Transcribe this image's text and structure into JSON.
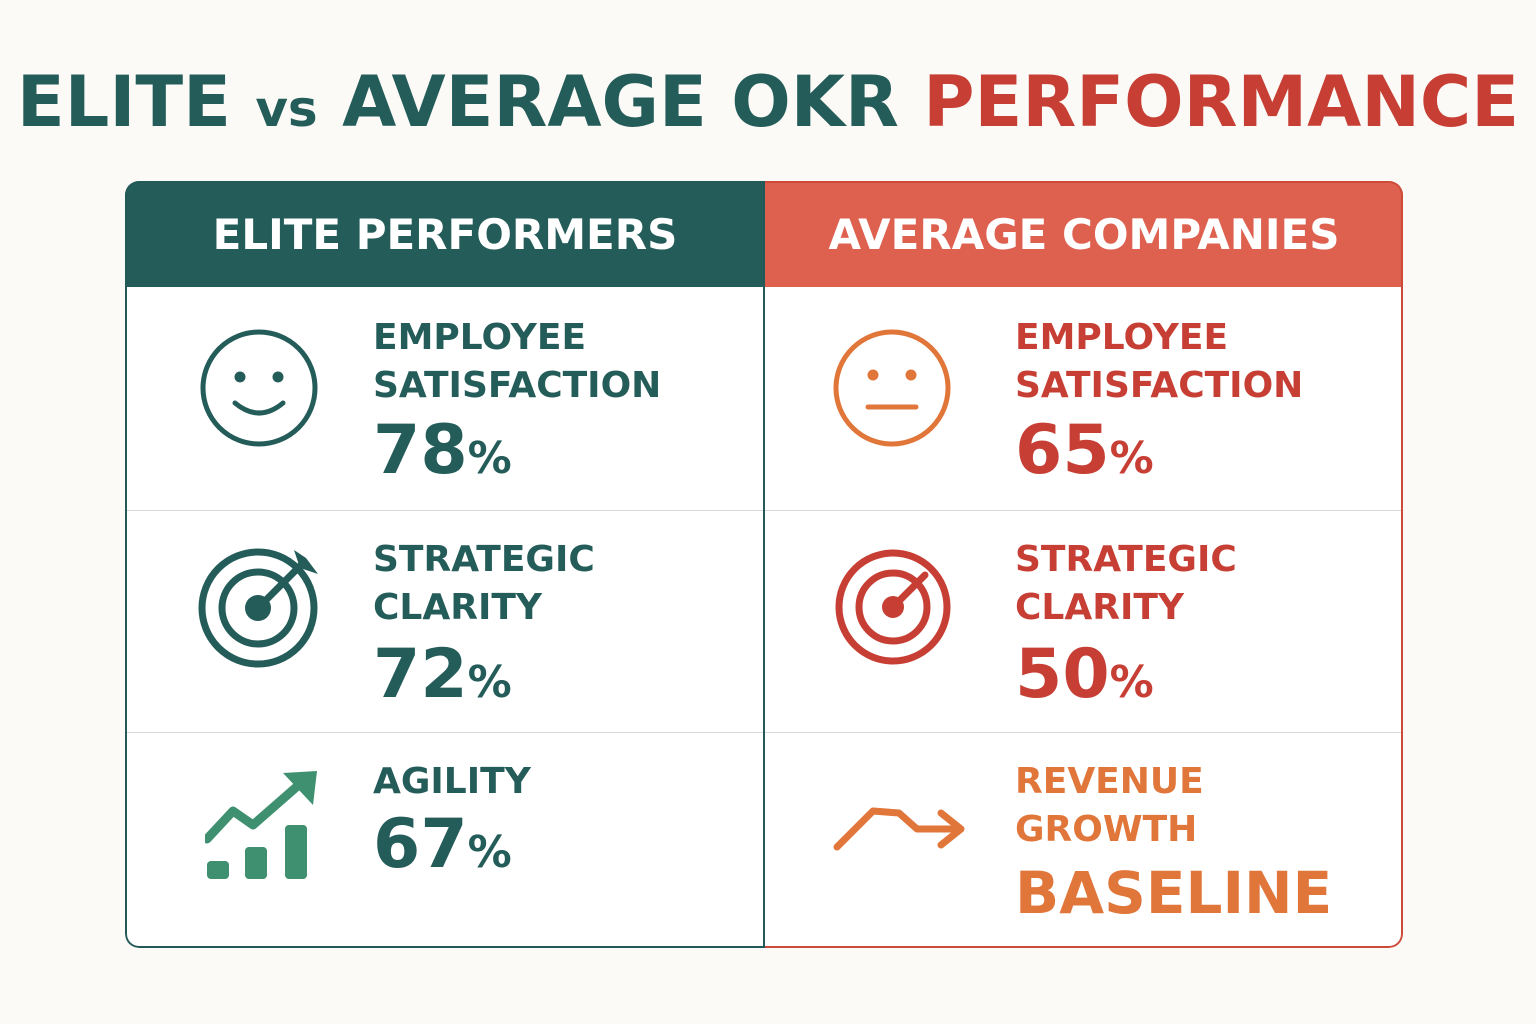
{
  "title": {
    "part1": "ELITE",
    "vs": "vs",
    "part2": "AVERAGE OKR",
    "part3": "PERFORMANCE"
  },
  "colors": {
    "teal": "#245c5a",
    "red": "#c73f34",
    "orange": "#e1763a",
    "green": "#3e9070",
    "header_right": "#de6150"
  },
  "elite": {
    "header": "ELITE PERFORMERS",
    "metrics": [
      {
        "icon": "smile-face-icon",
        "label_line1": "EMPLOYEE",
        "label_line2": "SATISFACTION",
        "value": "78",
        "unit": "%"
      },
      {
        "icon": "target-arrow-icon",
        "label_line1": "STRATEGIC",
        "label_line2": "CLARITY",
        "value": "72",
        "unit": "%"
      },
      {
        "icon": "growth-chart-icon",
        "label_line1": "AGILITY",
        "value": "67",
        "unit": "%"
      }
    ]
  },
  "average": {
    "header": "AVERAGE COMPANIES",
    "metrics": [
      {
        "icon": "neutral-face-icon",
        "label_line1": "EMPLOYEE",
        "label_line2": "SATISFACTION",
        "value": "65",
        "unit": "%"
      },
      {
        "icon": "target-icon",
        "label_line1": "STRATEGIC",
        "label_line2": "CLARITY",
        "value": "50",
        "unit": "%"
      },
      {
        "icon": "trend-arrow-icon",
        "label_line1": "REVENUE",
        "label_line2": "GROWTH",
        "value": "BASELINE"
      }
    ]
  }
}
